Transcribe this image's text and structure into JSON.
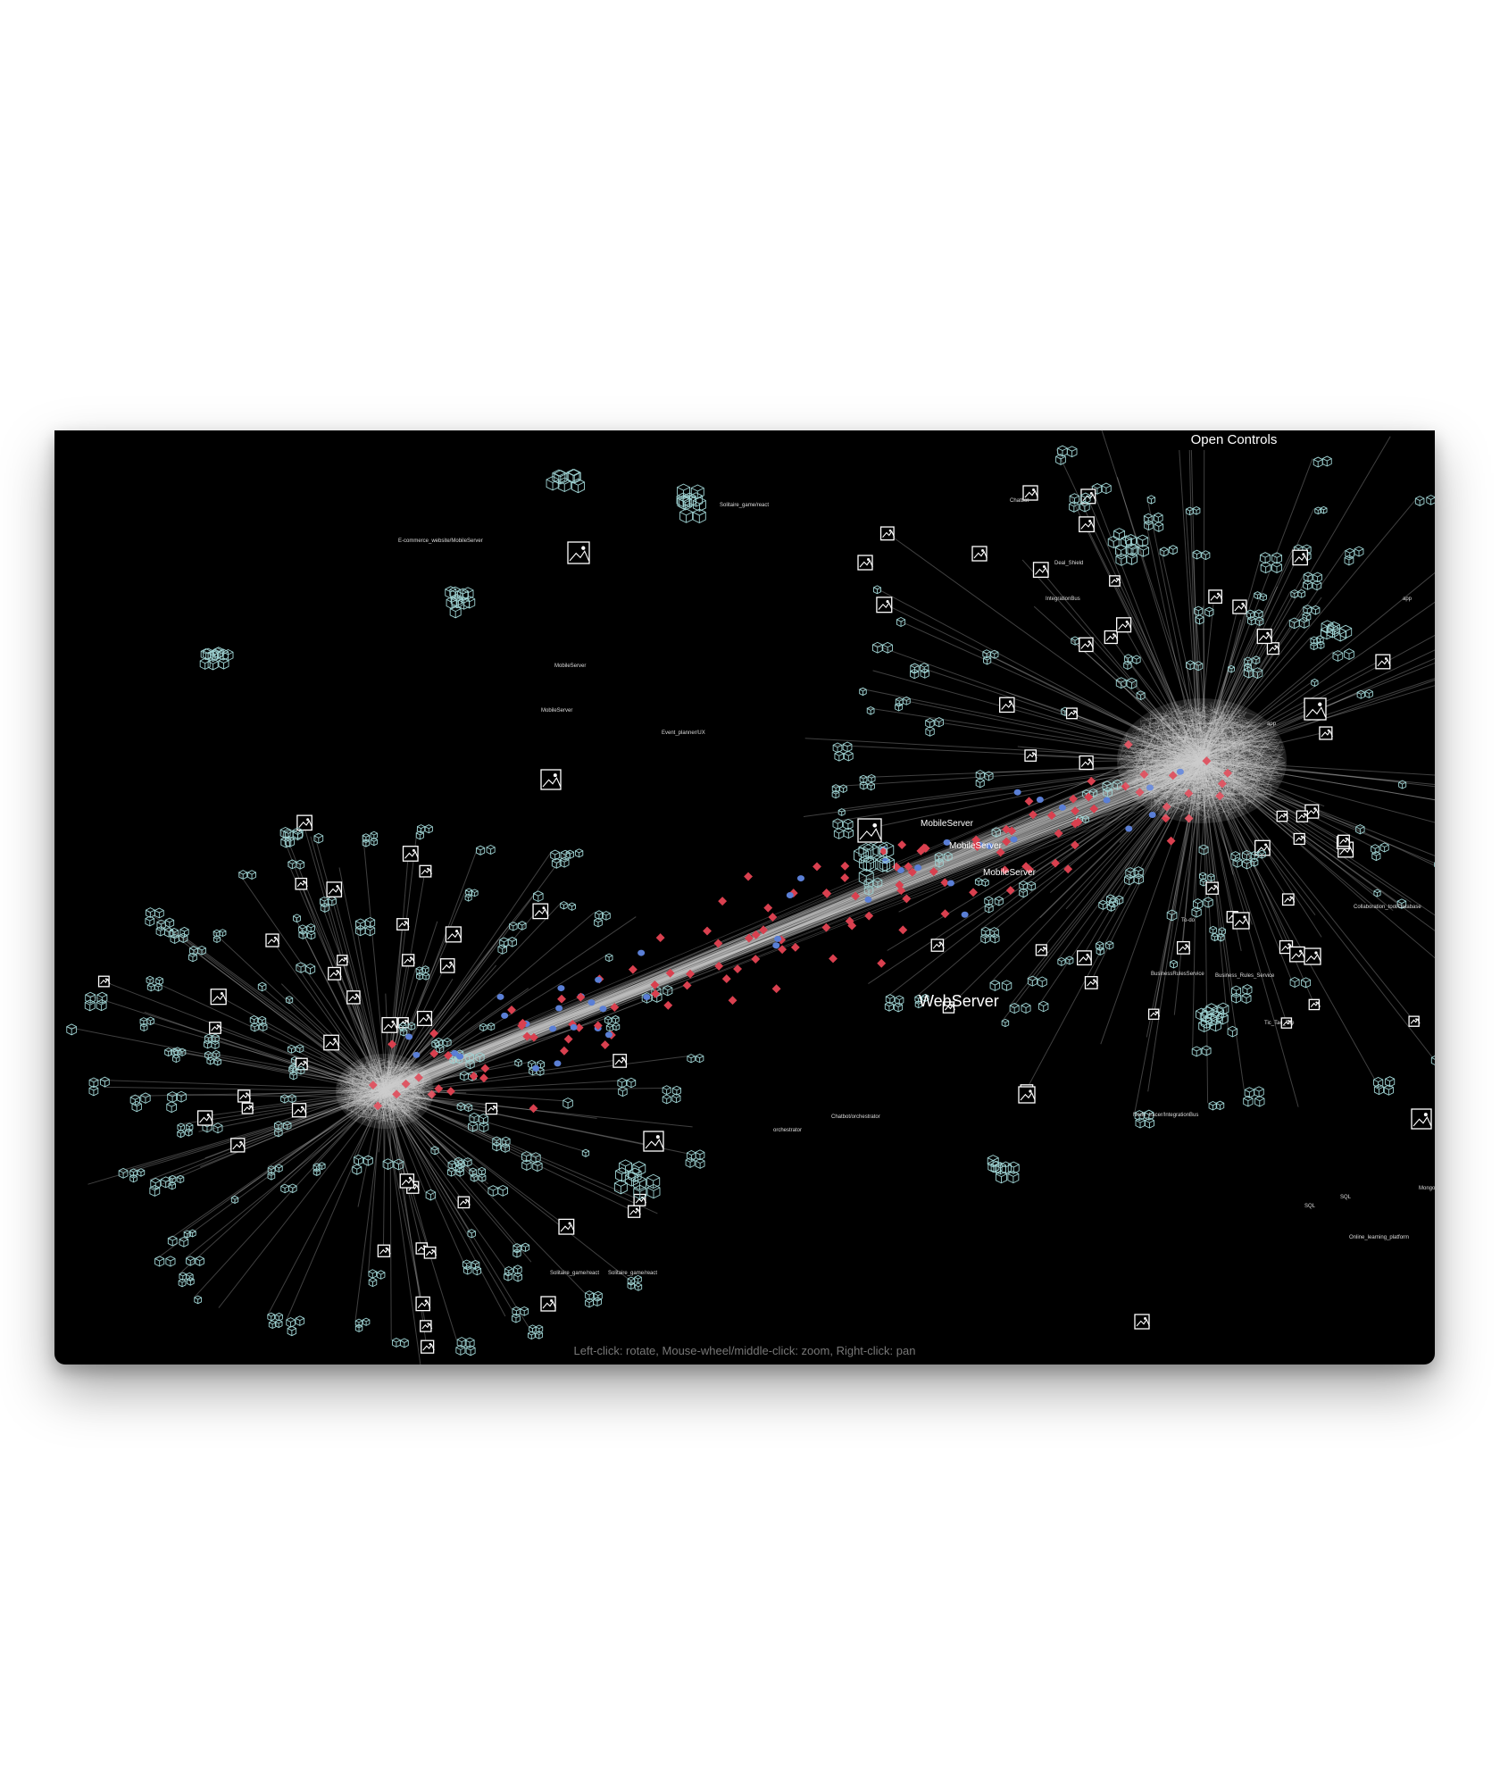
{
  "controls": {
    "open_label": "Open Controls"
  },
  "hint": "Left-click: rotate, Mouse-wheel/middle-click: zoom, Right-click: pan",
  "colors": {
    "background": "#000000",
    "edge": "#c8c8c8",
    "container_icon": "#9fd3d3",
    "image_icon": "#ffffff",
    "git_node": "#d9404f",
    "database_node": "#5a7fd6"
  },
  "icons": {
    "container": "stacked-boxes-icon",
    "image": "picture-icon",
    "git": "git-diamond-icon",
    "database": "database-cylinder-icon"
  },
  "graph": {
    "prominent_labels": [
      "WebServer",
      "MobileServer",
      "MobileServer",
      "MobileServer",
      "Open Controls"
    ],
    "labels": [
      "Solitaire_game/react",
      "E-commerce_website/MobileServer",
      "MobileServer",
      "Event_planner/UX",
      "orchestrator",
      "Chatbot/orchestrator",
      "BusinessRulesService",
      "Tic_Tac_Toe",
      "app",
      "app",
      "Online_learning_platform",
      "Mongo",
      "SQL",
      "SQL",
      "Solitaire_game/react",
      "Node_tracer/IntegrationBus",
      "Business_Rules_Service",
      "Collaboration_tool/Database",
      "To-do",
      "Deal_Shield",
      "Chatbot",
      "MobileServer",
      "Solitaire_game/react",
      "IntegrationBus"
    ]
  }
}
